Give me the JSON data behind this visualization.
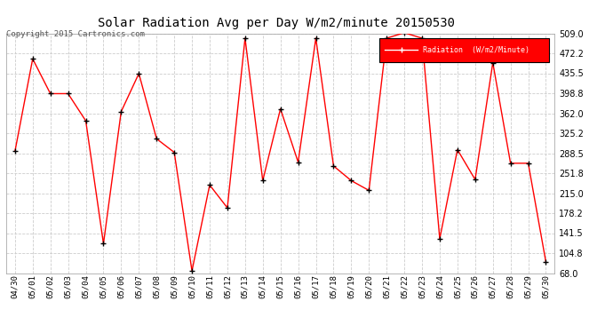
{
  "title": "Solar Radiation Avg per Day W/m2/minute 20150530",
  "copyright": "Copyright 2015 Cartronics.com",
  "legend_label": "Radiation  (W/m2/Minute)",
  "dates": [
    "04/30",
    "05/01",
    "05/02",
    "05/03",
    "05/04",
    "05/05",
    "05/06",
    "05/07",
    "05/08",
    "05/09",
    "05/10",
    "05/11",
    "05/12",
    "05/13",
    "05/14",
    "05/15",
    "05/16",
    "05/17",
    "05/18",
    "05/19",
    "05/20",
    "05/21",
    "05/22",
    "05/23",
    "05/24",
    "05/25",
    "05/26",
    "05/27",
    "05/28",
    "05/29",
    "05/30"
  ],
  "values": [
    292,
    462,
    398,
    398,
    348,
    122,
    365,
    435,
    315,
    290,
    72,
    230,
    188,
    500,
    238,
    370,
    272,
    500,
    265,
    238,
    220,
    500,
    510,
    500,
    131,
    295,
    240,
    455,
    270,
    270,
    88
  ],
  "yticks": [
    68.0,
    104.8,
    141.5,
    178.2,
    215.0,
    251.8,
    288.5,
    325.2,
    362.0,
    398.8,
    435.5,
    472.2,
    509.0
  ],
  "ylim": [
    68.0,
    509.0
  ],
  "line_color": "#ff0000",
  "marker_color": "#000000",
  "bg_color": "#ffffff",
  "grid_color": "#cccccc",
  "title_fontsize": 10,
  "legend_bg": "#ff0000",
  "legend_text_color": "#ffffff"
}
